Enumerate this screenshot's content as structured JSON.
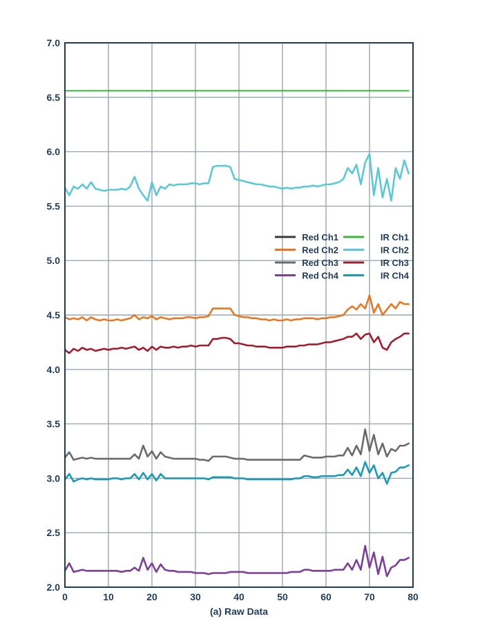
{
  "chart_data": {
    "type": "line",
    "xlabel": "(a) Raw Data",
    "ylabel": "",
    "xlim": [
      0,
      80
    ],
    "ylim": [
      2.0,
      7.0
    ],
    "xticks": [
      0,
      10,
      20,
      30,
      40,
      50,
      60,
      70,
      80
    ],
    "yticks": [
      "2.0",
      "2.5",
      "3.0",
      "3.5",
      "4.0",
      "4.5",
      "5.0",
      "5.5",
      "6.0",
      "6.5",
      "7.0"
    ],
    "grid": true,
    "legend_position": "right, mid-height",
    "series": [
      {
        "name": "Red Ch1",
        "color": "#3a3a3a",
        "x": [
          0,
          79
        ],
        "y": [
          null,
          null
        ]
      },
      {
        "name": "IR Ch1",
        "color": "#3cb43c",
        "x": [
          0,
          10,
          20,
          30,
          40,
          50,
          60,
          70,
          79
        ],
        "y": [
          6.56,
          6.56,
          6.56,
          6.56,
          6.56,
          6.56,
          6.56,
          6.56,
          6.56
        ]
      },
      {
        "name": "Red Ch2",
        "color": "#e87722",
        "x": [
          0,
          1,
          2,
          3,
          4,
          5,
          6,
          7,
          8,
          9,
          10,
          11,
          12,
          13,
          14,
          15,
          16,
          17,
          18,
          19,
          20,
          21,
          22,
          23,
          24,
          25,
          26,
          27,
          28,
          29,
          30,
          31,
          32,
          33,
          34,
          35,
          36,
          37,
          38,
          39,
          40,
          41,
          42,
          43,
          44,
          45,
          46,
          47,
          48,
          49,
          50,
          51,
          52,
          53,
          54,
          55,
          56,
          57,
          58,
          59,
          60,
          61,
          62,
          63,
          64,
          65,
          66,
          67,
          68,
          69,
          70,
          71,
          72,
          73,
          74,
          75,
          76,
          77,
          78,
          79
        ],
        "y": [
          4.48,
          4.46,
          4.47,
          4.46,
          4.48,
          4.45,
          4.48,
          4.46,
          4.45,
          4.46,
          4.45,
          4.45,
          4.46,
          4.45,
          4.46,
          4.47,
          4.5,
          4.46,
          4.48,
          4.47,
          4.49,
          4.46,
          4.48,
          4.47,
          4.46,
          4.47,
          4.47,
          4.47,
          4.48,
          4.48,
          4.47,
          4.48,
          4.48,
          4.49,
          4.56,
          4.56,
          4.56,
          4.56,
          4.56,
          4.5,
          4.49,
          4.48,
          4.48,
          4.47,
          4.47,
          4.46,
          4.46,
          4.45,
          4.46,
          4.45,
          4.45,
          4.46,
          4.45,
          4.46,
          4.46,
          4.47,
          4.47,
          4.47,
          4.46,
          4.47,
          4.47,
          4.48,
          4.48,
          4.49,
          4.5,
          4.55,
          4.58,
          4.55,
          4.6,
          4.56,
          4.68,
          4.52,
          4.6,
          4.5,
          4.55,
          4.6,
          4.56,
          4.62,
          4.6,
          4.6
        ]
      },
      {
        "name": "IR Ch2",
        "color": "#5bc8d6",
        "x": [
          0,
          1,
          2,
          3,
          4,
          5,
          6,
          7,
          8,
          9,
          10,
          11,
          12,
          13,
          14,
          15,
          16,
          17,
          18,
          19,
          20,
          21,
          22,
          23,
          24,
          25,
          26,
          27,
          28,
          29,
          30,
          31,
          32,
          33,
          34,
          35,
          36,
          37,
          38,
          39,
          40,
          41,
          42,
          43,
          44,
          45,
          46,
          47,
          48,
          49,
          50,
          51,
          52,
          53,
          54,
          55,
          56,
          57,
          58,
          59,
          60,
          61,
          62,
          63,
          64,
          65,
          66,
          67,
          68,
          69,
          70,
          71,
          72,
          73,
          74,
          75,
          76,
          77,
          78,
          79
        ],
        "y": [
          5.67,
          5.6,
          5.68,
          5.66,
          5.7,
          5.66,
          5.72,
          5.66,
          5.65,
          5.64,
          5.65,
          5.65,
          5.65,
          5.66,
          5.65,
          5.68,
          5.77,
          5.66,
          5.6,
          5.55,
          5.72,
          5.6,
          5.68,
          5.66,
          5.7,
          5.69,
          5.7,
          5.7,
          5.7,
          5.71,
          5.71,
          5.7,
          5.71,
          5.71,
          5.86,
          5.87,
          5.87,
          5.87,
          5.86,
          5.75,
          5.74,
          5.73,
          5.72,
          5.71,
          5.7,
          5.7,
          5.69,
          5.68,
          5.68,
          5.67,
          5.66,
          5.67,
          5.66,
          5.67,
          5.67,
          5.68,
          5.68,
          5.69,
          5.68,
          5.69,
          5.7,
          5.7,
          5.71,
          5.72,
          5.75,
          5.85,
          5.8,
          5.88,
          5.7,
          5.9,
          5.98,
          5.6,
          5.85,
          5.58,
          5.75,
          5.55,
          5.85,
          5.75,
          5.92,
          5.8
        ]
      },
      {
        "name": "Red Ch3",
        "color": "#6a6a6a",
        "x": [
          0,
          1,
          2,
          3,
          4,
          5,
          6,
          7,
          8,
          9,
          10,
          11,
          12,
          13,
          14,
          15,
          16,
          17,
          18,
          19,
          20,
          21,
          22,
          23,
          24,
          25,
          26,
          27,
          28,
          29,
          30,
          31,
          32,
          33,
          34,
          35,
          36,
          37,
          38,
          39,
          40,
          41,
          42,
          43,
          44,
          45,
          46,
          47,
          48,
          49,
          50,
          51,
          52,
          53,
          54,
          55,
          56,
          57,
          58,
          59,
          60,
          61,
          62,
          63,
          64,
          65,
          66,
          67,
          68,
          69,
          70,
          71,
          72,
          73,
          74,
          75,
          76,
          77,
          78,
          79
        ],
        "y": [
          3.19,
          3.24,
          3.17,
          3.18,
          3.19,
          3.18,
          3.19,
          3.18,
          3.18,
          3.18,
          3.18,
          3.18,
          3.18,
          3.18,
          3.18,
          3.18,
          3.22,
          3.18,
          3.3,
          3.2,
          3.25,
          3.18,
          3.24,
          3.2,
          3.19,
          3.18,
          3.18,
          3.18,
          3.18,
          3.18,
          3.18,
          3.17,
          3.17,
          3.16,
          3.2,
          3.2,
          3.2,
          3.2,
          3.19,
          3.18,
          3.18,
          3.18,
          3.17,
          3.17,
          3.17,
          3.17,
          3.17,
          3.17,
          3.17,
          3.17,
          3.17,
          3.17,
          3.17,
          3.17,
          3.17,
          3.21,
          3.2,
          3.19,
          3.19,
          3.19,
          3.2,
          3.2,
          3.2,
          3.21,
          3.21,
          3.28,
          3.21,
          3.3,
          3.22,
          3.45,
          3.25,
          3.4,
          3.22,
          3.32,
          3.2,
          3.27,
          3.25,
          3.3,
          3.3,
          3.32
        ]
      },
      {
        "name": "IR Ch3",
        "color": "#a01c2e",
        "x": [
          0,
          1,
          2,
          3,
          4,
          5,
          6,
          7,
          8,
          9,
          10,
          11,
          12,
          13,
          14,
          15,
          16,
          17,
          18,
          19,
          20,
          21,
          22,
          23,
          24,
          25,
          26,
          27,
          28,
          29,
          30,
          31,
          32,
          33,
          34,
          35,
          36,
          37,
          38,
          39,
          40,
          41,
          42,
          43,
          44,
          45,
          46,
          47,
          48,
          49,
          50,
          51,
          52,
          53,
          54,
          55,
          56,
          57,
          58,
          59,
          60,
          61,
          62,
          63,
          64,
          65,
          66,
          67,
          68,
          69,
          70,
          71,
          72,
          73,
          74,
          75,
          76,
          77,
          78,
          79
        ],
        "y": [
          4.18,
          4.15,
          4.19,
          4.17,
          4.2,
          4.18,
          4.19,
          4.17,
          4.18,
          4.19,
          4.18,
          4.19,
          4.19,
          4.2,
          4.19,
          4.2,
          4.21,
          4.18,
          4.2,
          4.17,
          4.21,
          4.18,
          4.21,
          4.2,
          4.2,
          4.21,
          4.2,
          4.21,
          4.21,
          4.22,
          4.21,
          4.22,
          4.22,
          4.22,
          4.28,
          4.28,
          4.29,
          4.29,
          4.28,
          4.24,
          4.24,
          4.23,
          4.22,
          4.22,
          4.21,
          4.21,
          4.21,
          4.2,
          4.2,
          4.2,
          4.2,
          4.21,
          4.21,
          4.21,
          4.22,
          4.22,
          4.23,
          4.23,
          4.23,
          4.24,
          4.25,
          4.25,
          4.26,
          4.27,
          4.28,
          4.3,
          4.3,
          4.33,
          4.28,
          4.32,
          4.33,
          4.25,
          4.3,
          4.2,
          4.18,
          4.25,
          4.28,
          4.3,
          4.33,
          4.33
        ]
      },
      {
        "name": "Red Ch4",
        "color": "#7b3f98",
        "x": [
          0,
          1,
          2,
          3,
          4,
          5,
          6,
          7,
          8,
          9,
          10,
          11,
          12,
          13,
          14,
          15,
          16,
          17,
          18,
          19,
          20,
          21,
          22,
          23,
          24,
          25,
          26,
          27,
          28,
          29,
          30,
          31,
          32,
          33,
          34,
          35,
          36,
          37,
          38,
          39,
          40,
          41,
          42,
          43,
          44,
          45,
          46,
          47,
          48,
          49,
          50,
          51,
          52,
          53,
          54,
          55,
          56,
          57,
          58,
          59,
          60,
          61,
          62,
          63,
          64,
          65,
          66,
          67,
          68,
          69,
          70,
          71,
          72,
          73,
          74,
          75,
          76,
          77,
          78,
          79
        ],
        "y": [
          2.15,
          2.22,
          2.14,
          2.15,
          2.16,
          2.15,
          2.15,
          2.15,
          2.15,
          2.15,
          2.15,
          2.15,
          2.15,
          2.14,
          2.15,
          2.15,
          2.18,
          2.15,
          2.27,
          2.16,
          2.22,
          2.14,
          2.21,
          2.16,
          2.15,
          2.15,
          2.14,
          2.14,
          2.14,
          2.14,
          2.13,
          2.13,
          2.13,
          2.12,
          2.13,
          2.13,
          2.13,
          2.13,
          2.14,
          2.14,
          2.14,
          2.14,
          2.13,
          2.13,
          2.13,
          2.13,
          2.13,
          2.13,
          2.13,
          2.13,
          2.13,
          2.13,
          2.14,
          2.14,
          2.14,
          2.16,
          2.16,
          2.15,
          2.15,
          2.15,
          2.15,
          2.15,
          2.16,
          2.16,
          2.16,
          2.22,
          2.16,
          2.25,
          2.16,
          2.38,
          2.18,
          2.32,
          2.12,
          2.28,
          2.1,
          2.18,
          2.2,
          2.25,
          2.25,
          2.27
        ]
      },
      {
        "name": "IR Ch4",
        "color": "#1a9bb5",
        "x": [
          0,
          1,
          2,
          3,
          4,
          5,
          6,
          7,
          8,
          9,
          10,
          11,
          12,
          13,
          14,
          15,
          16,
          17,
          18,
          19,
          20,
          21,
          22,
          23,
          24,
          25,
          26,
          27,
          28,
          29,
          30,
          31,
          32,
          33,
          34,
          35,
          36,
          37,
          38,
          39,
          40,
          41,
          42,
          43,
          44,
          45,
          46,
          47,
          48,
          49,
          50,
          51,
          52,
          53,
          54,
          55,
          56,
          57,
          58,
          59,
          60,
          61,
          62,
          63,
          64,
          65,
          66,
          67,
          68,
          69,
          70,
          71,
          72,
          73,
          74,
          75,
          76,
          77,
          78,
          79
        ],
        "y": [
          2.99,
          3.04,
          2.97,
          2.99,
          3.0,
          2.99,
          3.0,
          2.99,
          2.99,
          2.99,
          2.99,
          3.0,
          3.0,
          2.99,
          3.0,
          3.0,
          3.04,
          2.99,
          3.05,
          2.99,
          3.04,
          2.98,
          3.04,
          3.0,
          3.0,
          3.0,
          3.0,
          3.0,
          3.0,
          3.0,
          3.0,
          3.0,
          3.0,
          2.99,
          3.01,
          3.01,
          3.01,
          3.01,
          3.01,
          3.0,
          3.0,
          3.0,
          2.99,
          2.99,
          2.99,
          2.99,
          2.99,
          2.99,
          2.99,
          2.99,
          2.99,
          2.99,
          2.99,
          3.0,
          3.0,
          3.02,
          3.02,
          3.01,
          3.01,
          3.02,
          3.02,
          3.02,
          3.02,
          3.03,
          3.03,
          3.08,
          3.03,
          3.1,
          3.02,
          3.15,
          3.05,
          3.12,
          3.0,
          3.05,
          2.95,
          3.05,
          3.06,
          3.1,
          3.1,
          3.12
        ]
      }
    ]
  }
}
